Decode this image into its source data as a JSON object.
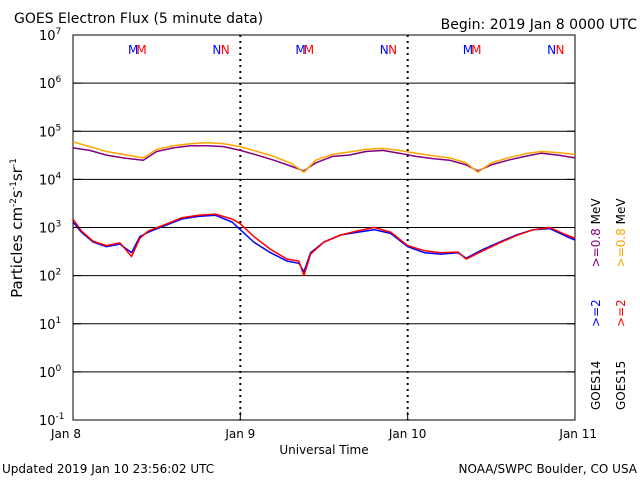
{
  "header": {
    "title": "GOES Electron Flux (5 minute data)",
    "begin": "Begin: 2019 Jan 8 0000 UTC"
  },
  "footer": {
    "updated": "Updated 2019 Jan 10 23:56:02 UTC",
    "credit": "NOAA/SWPC Boulder, CO USA"
  },
  "chart_data": {
    "type": "line",
    "xlabel": "Universal Time",
    "ylabel_parts": [
      "Particles cm",
      "-2",
      "s",
      "-1",
      "sr",
      "-1"
    ],
    "yscale": "log",
    "ylim": [
      0.1,
      10000000
    ],
    "xlim": [
      0,
      3
    ],
    "x_unit": "days since 2019 Jan 8 0000 UTC",
    "x_ticks": [
      {
        "value": 0,
        "label": "Jan 8"
      },
      {
        "value": 1,
        "label": "Jan 9"
      },
      {
        "value": 2,
        "label": "Jan 10"
      },
      {
        "value": 3,
        "label": "Jan 11"
      }
    ],
    "y_ticks": [
      {
        "exp": "-1"
      },
      {
        "exp": "0"
      },
      {
        "exp": "1"
      },
      {
        "exp": "2"
      },
      {
        "exp": "3"
      },
      {
        "exp": "4"
      },
      {
        "exp": "5"
      },
      {
        "exp": "6"
      },
      {
        "exp": "7"
      }
    ],
    "threshold": 1000,
    "legend": {
      "col1": [
        {
          "text": "GOES14",
          "color": "#000000"
        },
        {
          "text": ">=2",
          "color": "#0000ff"
        },
        {
          "text": ">=0.8",
          "color": "#800080"
        },
        {
          "text": "MeV",
          "color": "#000000"
        }
      ],
      "col2": [
        {
          "text": "GOES15",
          "color": "#000000"
        },
        {
          "text": ">=2",
          "color": "#ff0000"
        },
        {
          "text": ">=0.8",
          "color": "#ffa500"
        },
        {
          "text": "MeV",
          "color": "#000000"
        }
      ]
    },
    "markers": [
      {
        "x": 0.36,
        "text": "M",
        "color": "#0000ff"
      },
      {
        "x": 0.41,
        "text": "M",
        "color": "#ff0000"
      },
      {
        "x": 0.86,
        "text": "N",
        "color": "#0000ff"
      },
      {
        "x": 0.91,
        "text": "N",
        "color": "#ff0000"
      },
      {
        "x": 1.36,
        "text": "M",
        "color": "#0000ff"
      },
      {
        "x": 1.41,
        "text": "M",
        "color": "#ff0000"
      },
      {
        "x": 1.86,
        "text": "N",
        "color": "#0000ff"
      },
      {
        "x": 1.91,
        "text": "N",
        "color": "#ff0000"
      },
      {
        "x": 2.36,
        "text": "M",
        "color": "#0000ff"
      },
      {
        "x": 2.41,
        "text": "M",
        "color": "#ff0000"
      },
      {
        "x": 2.86,
        "text": "N",
        "color": "#0000ff"
      },
      {
        "x": 2.91,
        "text": "N",
        "color": "#ff0000"
      }
    ],
    "series": [
      {
        "name": "GOES14 >=0.8 MeV",
        "color": "#800080",
        "x": [
          0,
          0.1,
          0.2,
          0.3,
          0.42,
          0.5,
          0.6,
          0.7,
          0.8,
          0.9,
          1.0,
          1.1,
          1.2,
          1.3,
          1.38,
          1.45,
          1.55,
          1.65,
          1.75,
          1.85,
          1.95,
          2.05,
          2.15,
          2.25,
          2.35,
          2.42,
          2.5,
          2.6,
          2.7,
          2.8,
          2.9,
          3.0
        ],
        "y": [
          45000,
          40000,
          32000,
          28000,
          25000,
          38000,
          45000,
          50000,
          50000,
          48000,
          40000,
          32000,
          25000,
          19000,
          15000,
          22000,
          30000,
          32000,
          38000,
          40000,
          35000,
          30000,
          27000,
          25000,
          20000,
          15000,
          20000,
          25000,
          30000,
          35000,
          32000,
          28000
        ]
      },
      {
        "name": "GOES15 >=0.8 MeV",
        "color": "#ffa500",
        "x": [
          0,
          0.1,
          0.2,
          0.3,
          0.42,
          0.5,
          0.6,
          0.7,
          0.8,
          0.9,
          1.0,
          1.1,
          1.2,
          1.3,
          1.38,
          1.45,
          1.55,
          1.65,
          1.75,
          1.85,
          1.95,
          2.05,
          2.15,
          2.25,
          2.35,
          2.42,
          2.5,
          2.6,
          2.7,
          2.8,
          2.9,
          3.0
        ],
        "y": [
          60000,
          48000,
          38000,
          33000,
          28000,
          42000,
          50000,
          55000,
          58000,
          55000,
          48000,
          38000,
          30000,
          22000,
          14000,
          25000,
          33000,
          37000,
          42000,
          44000,
          40000,
          35000,
          31000,
          28000,
          22000,
          14000,
          22000,
          28000,
          34000,
          38000,
          36000,
          33000
        ]
      },
      {
        "name": "GOES14 >=2 MeV",
        "color": "#0000ff",
        "x": [
          0,
          0.05,
          0.12,
          0.2,
          0.28,
          0.35,
          0.4,
          0.45,
          0.55,
          0.65,
          0.75,
          0.85,
          0.95,
          1.0,
          1.08,
          1.18,
          1.28,
          1.35,
          1.38,
          1.42,
          1.5,
          1.6,
          1.7,
          1.8,
          1.9,
          2.0,
          2.1,
          2.2,
          2.3,
          2.35,
          2.45,
          2.55,
          2.65,
          2.75,
          2.85,
          2.95,
          3.0
        ],
        "y": [
          1300,
          800,
          500,
          400,
          450,
          300,
          650,
          800,
          1100,
          1500,
          1700,
          1800,
          1300,
          900,
          500,
          300,
          200,
          180,
          120,
          300,
          500,
          700,
          800,
          900,
          750,
          400,
          300,
          280,
          300,
          230,
          350,
          500,
          700,
          900,
          950,
          650,
          550
        ]
      },
      {
        "name": "GOES15 >=2 MeV",
        "color": "#ff0000",
        "x": [
          0,
          0.05,
          0.12,
          0.2,
          0.28,
          0.35,
          0.4,
          0.45,
          0.55,
          0.65,
          0.75,
          0.85,
          0.95,
          1.0,
          1.08,
          1.18,
          1.28,
          1.35,
          1.38,
          1.42,
          1.5,
          1.6,
          1.7,
          1.8,
          1.9,
          2.0,
          2.1,
          2.2,
          2.3,
          2.35,
          2.45,
          2.55,
          2.65,
          2.75,
          2.85,
          2.95,
          3.0
        ],
        "y": [
          1500,
          850,
          520,
          420,
          480,
          250,
          600,
          850,
          1150,
          1600,
          1800,
          1900,
          1500,
          1200,
          650,
          350,
          220,
          200,
          100,
          280,
          500,
          700,
          850,
          1000,
          800,
          420,
          330,
          300,
          310,
          220,
          330,
          480,
          680,
          900,
          1000,
          700,
          600
        ]
      }
    ]
  }
}
